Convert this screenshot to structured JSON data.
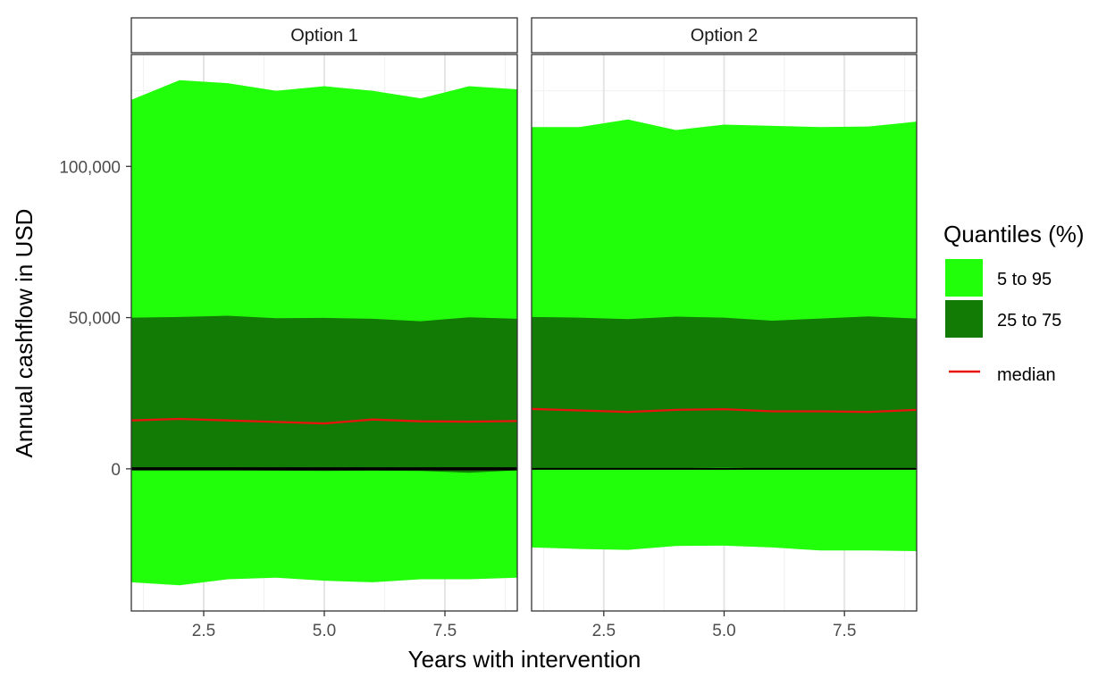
{
  "chart_data": {
    "type": "area",
    "xlabel": "Years with intervention",
    "ylabel": "Annual cashflow in USD",
    "xlim": [
      1,
      9
    ],
    "ylim": [
      -47000,
      137000
    ],
    "x_ticks": [
      2.5,
      5.0,
      7.5
    ],
    "x_tick_labels": [
      "2.5",
      "5.0",
      "7.5"
    ],
    "y_ticks": [
      0,
      50000,
      100000
    ],
    "y_tick_labels": [
      "0",
      "50,000",
      "100,000"
    ],
    "grid": true,
    "reference_line_y": 0,
    "legend": {
      "title": "Quantiles (%)",
      "placement": "right",
      "items": [
        {
          "label": "5 to 95",
          "color": "#22ff0b",
          "kind": "fill"
        },
        {
          "label": "25 to 75",
          "color": "#127b05",
          "kind": "fill"
        },
        {
          "label": "median",
          "color": "#e8140f",
          "kind": "line"
        }
      ]
    },
    "panels": [
      {
        "title": "Option 1",
        "x": [
          1,
          2,
          3,
          4,
          5,
          6,
          7,
          8,
          9
        ],
        "q05": [
          -37500,
          -38500,
          -36500,
          -36000,
          -37000,
          -37500,
          -36500,
          -36500,
          -36000
        ],
        "q25": [
          -500,
          -400,
          -500,
          -600,
          -700,
          -600,
          -700,
          -1300,
          -500
        ],
        "median": [
          16000,
          16500,
          16000,
          15500,
          15000,
          16300,
          15700,
          15600,
          15800
        ],
        "q75": [
          50000,
          50200,
          50600,
          49800,
          49900,
          49600,
          48800,
          50100,
          49600
        ],
        "q95": [
          122000,
          128500,
          127500,
          125000,
          126500,
          125000,
          122500,
          126500,
          125500
        ]
      },
      {
        "title": "Option 2",
        "x": [
          1,
          2,
          3,
          4,
          5,
          6,
          7,
          8,
          9
        ],
        "q05": [
          -26000,
          -26500,
          -26800,
          -25500,
          -25400,
          -26000,
          -27000,
          -27000,
          -27200
        ],
        "q25": [
          300,
          100,
          0,
          200,
          400,
          100,
          0,
          200,
          0
        ],
        "median": [
          19800,
          19300,
          18800,
          19500,
          19700,
          19000,
          19000,
          18800,
          19500
        ],
        "q75": [
          50200,
          50000,
          49500,
          50300,
          50000,
          49000,
          49700,
          50400,
          49700
        ],
        "q95": [
          113000,
          113000,
          115500,
          112000,
          113800,
          113400,
          113000,
          113200,
          114800
        ]
      }
    ]
  },
  "colors": {
    "band_outer": "#22ff0b",
    "band_inner": "#127b05",
    "median": "#e8140f",
    "zero_line": "#000000",
    "grid_major": "#e5e5e5",
    "grid_minor": "#f2f2f2",
    "panel_border": "#333333",
    "strip_border": "#333333",
    "strip_fill": "#ffffff"
  }
}
